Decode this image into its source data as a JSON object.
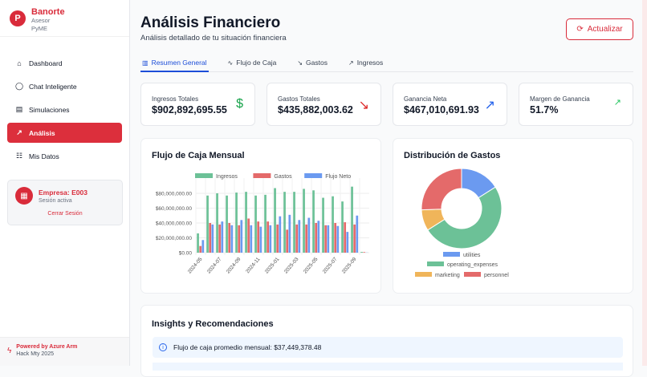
{
  "sidebar": {
    "brand": "Banorte",
    "sub1": "Asesor",
    "sub2": "PyME",
    "items": [
      {
        "label": "Dashboard",
        "icon": "home-icon"
      },
      {
        "label": "Chat Inteligente",
        "icon": "chat-icon"
      },
      {
        "label": "Simulaciones",
        "icon": "calculator-icon"
      },
      {
        "label": "Análisis",
        "icon": "trending-up-icon"
      },
      {
        "label": "Mis Datos",
        "icon": "database-icon"
      }
    ],
    "active": "Análisis",
    "company": "Empresa: E003",
    "session": "Sesión activa",
    "logout": "Cerrar Sesión",
    "powered": "Powered by Azure Arm",
    "event": "Hack Mty 2025"
  },
  "header": {
    "title": "Análisis Financiero",
    "subtitle": "Análisis detallado de tu situación financiera",
    "refresh": "Actualizar"
  },
  "tabs": [
    {
      "label": "Resumen General",
      "active": true
    },
    {
      "label": "Flujo de Caja"
    },
    {
      "label": "Gastos"
    },
    {
      "label": "Ingresos"
    }
  ],
  "cards": [
    {
      "label": "Ingresos Totales",
      "value": "$902,892,695.55",
      "icon": "dollar-icon",
      "color": "#16a34a"
    },
    {
      "label": "Gastos Totales",
      "value": "$435,882,003.62",
      "icon": "trending-down-icon",
      "color": "#dc2626"
    },
    {
      "label": "Ganancia Neta",
      "value": "$467,010,691.93",
      "icon": "trending-up-icon",
      "color": "#2563eb"
    },
    {
      "label": "Margen de Ganancia",
      "value": "51.7%",
      "icon": "trending-up-icon",
      "color": "#22c55e"
    }
  ],
  "panels": {
    "cashflow": "Flujo de Caja Mensual",
    "expenses": "Distribución de Gastos",
    "insights": "Insights y Recomendaciones"
  },
  "insights": [
    "Flujo de caja promedio mensual: $37,449,378.48"
  ],
  "chart_data": [
    {
      "type": "bar",
      "title": "Flujo de Caja Mensual",
      "categories": [
        "2024-05",
        "2024-06",
        "2024-07",
        "2024-08",
        "2024-09",
        "2024-10",
        "2024-11",
        "2024-12",
        "2025-01",
        "2025-02",
        "2025-03",
        "2025-04",
        "2025-05",
        "2025-06",
        "2025-07",
        "2025-08",
        "2025-09",
        "2025-10"
      ],
      "tick_labels": [
        "2024-05",
        "2024-07",
        "2024-09",
        "2024-11",
        "2025-01",
        "2025-03",
        "2025-05",
        "2025-07",
        "2025-09"
      ],
      "yticks": [
        "$0.00",
        "$20,000,000.00",
        "$40,000,000.00",
        "$60,000,000.00",
        "$80,000,000.00"
      ],
      "ylim": [
        0,
        90000000
      ],
      "grid": true,
      "legend": "top",
      "series": [
        {
          "name": "Ingresos",
          "color": "#6cc197",
          "values": [
            26000000,
            77000000,
            80000000,
            77000000,
            81000000,
            82000000,
            77000000,
            78000000,
            87000000,
            82000000,
            82000000,
            86000000,
            84000000,
            74000000,
            76000000,
            69000000,
            89000000,
            1000000
          ]
        },
        {
          "name": "Gastos",
          "color": "#e46a6a",
          "values": [
            9000000,
            40000000,
            38000000,
            40000000,
            37000000,
            46000000,
            42000000,
            42000000,
            38000000,
            31000000,
            38000000,
            38000000,
            40000000,
            37000000,
            40000000,
            41000000,
            38000000,
            800000
          ]
        },
        {
          "name": "Flujo Neto",
          "color": "#6b9af0",
          "values": [
            17000000,
            38000000,
            42000000,
            37000000,
            44000000,
            37000000,
            35000000,
            37000000,
            49000000,
            51000000,
            44000000,
            47000000,
            43000000,
            37000000,
            36000000,
            28000000,
            50000000,
            200000
          ]
        }
      ]
    },
    {
      "type": "pie",
      "title": "Distribución de Gastos",
      "legend": "bottom",
      "slices": [
        {
          "name": "utilities",
          "value": 16,
          "color": "#6b9af0"
        },
        {
          "name": "operating_expenses",
          "value": 50,
          "color": "#6cc197"
        },
        {
          "name": "marketing",
          "value": 8.5,
          "color": "#f0b55a"
        },
        {
          "name": "personnel",
          "value": 25.5,
          "color": "#e46a6a"
        }
      ]
    }
  ]
}
